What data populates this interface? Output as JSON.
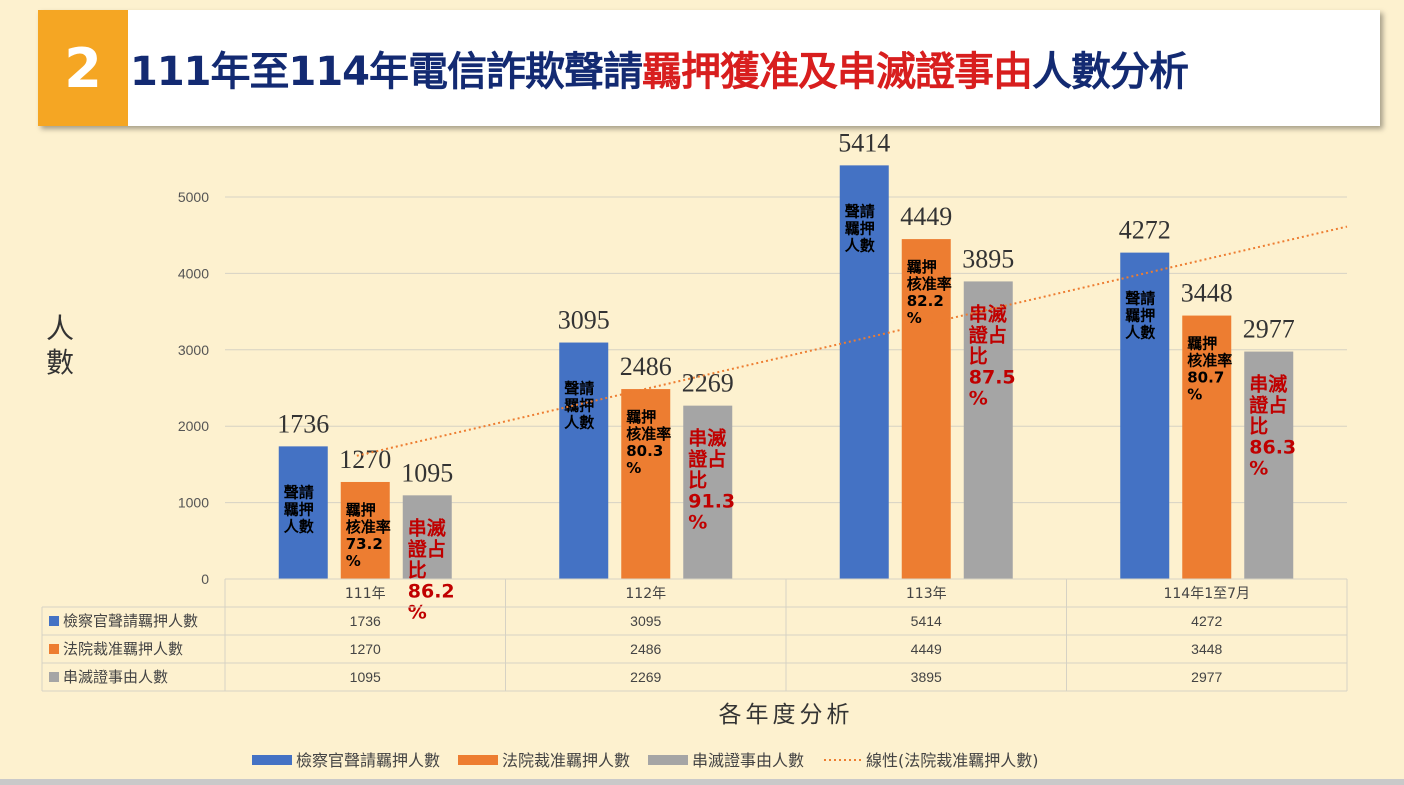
{
  "title": {
    "number": "2",
    "part1": "111年至114年電信詐欺聲請",
    "part2": "羈押獲准及串滅證事由",
    "part3": "人數分析"
  },
  "chart_data": {
    "type": "bar",
    "categories": [
      "111年",
      "112年",
      "113年",
      "114年1至7月"
    ],
    "series": [
      {
        "name": "檢察官聲請羈押人數",
        "color": "#4472c4",
        "values": [
          1736,
          3095,
          5414,
          4272
        ],
        "bar_labels": [
          "聲請\n羈押\n人數",
          "聲請\n羈押\n人數",
          "聲請\n羈押\n人數",
          "聲請\n羈押\n人數"
        ]
      },
      {
        "name": "法院裁准羈押人數",
        "color": "#ed7d31",
        "values": [
          1270,
          2486,
          4449,
          3448
        ],
        "bar_labels": [
          "羈押\n核准率\n73.2\n%",
          "羈押\n核准率\n80.3\n%",
          "羈押\n核准率\n82.2\n%",
          "羈押\n核准率\n80.7\n%"
        ]
      },
      {
        "name": "串滅證事由人數",
        "color": "#a5a5a5",
        "values": [
          1095,
          2269,
          3895,
          2977
        ],
        "bar_labels": [
          "串滅\n證占\n比\n86.2\n%",
          "串滅\n證占\n比\n91.3\n%",
          "串滅\n證占\n比\n87.5\n%",
          "串滅\n證占\n比\n86.3\n%"
        ]
      }
    ],
    "trendline": {
      "name": "線性(法院裁准羈押人數)",
      "color": "#ed7d31",
      "of_series": 1
    },
    "ylabel": "人數",
    "xlabel": "各年度分析",
    "yticks": [
      0,
      1000,
      2000,
      3000,
      4000,
      5000
    ],
    "ylim": [
      0,
      6000
    ],
    "grid": true,
    "legend_position": "bottom",
    "table": true
  }
}
